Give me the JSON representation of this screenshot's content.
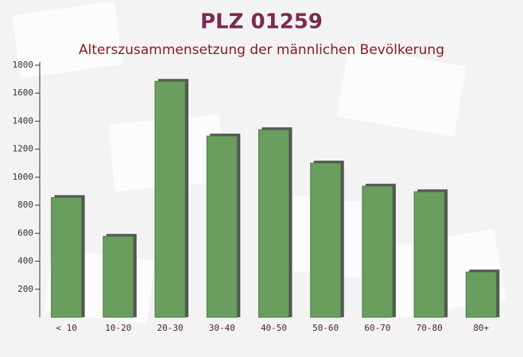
{
  "chart_data": {
    "type": "bar",
    "title": "PLZ 01259",
    "subtitle": "Alterszusammensetzung der männlichen Bevölkerung",
    "categories": [
      "< 10",
      "10-20",
      "20-30",
      "30-40",
      "40-50",
      "50-60",
      "60-70",
      "70-80",
      "80+"
    ],
    "values": [
      855,
      578,
      1685,
      1294,
      1339,
      1101,
      936,
      896,
      323
    ],
    "color": "#6a9e5f",
    "ylim": [
      0,
      1800
    ],
    "yticks": [
      200,
      400,
      600,
      800,
      1000,
      1200,
      1400,
      1600,
      1800
    ]
  }
}
